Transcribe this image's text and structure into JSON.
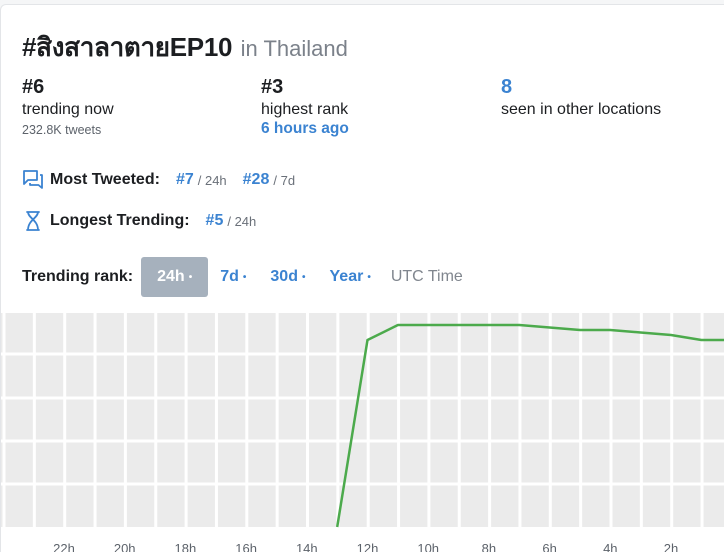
{
  "header": {
    "hashtag": "#สิงสาลาตายEP10",
    "location": "in Thailand"
  },
  "stats": [
    {
      "value": "#6",
      "label": "trending now",
      "sub": "232.8K tweets"
    },
    {
      "value": "#3",
      "label": "highest rank",
      "sub": "6 hours ago"
    },
    {
      "value": "8",
      "label": "seen in other locations"
    }
  ],
  "most_tweeted": {
    "label": "Most Tweeted:",
    "ranks": [
      {
        "rank": "#7",
        "period": "/ 24h"
      },
      {
        "rank": "#28",
        "period": "/ 7d"
      }
    ]
  },
  "longest_trending": {
    "label": "Longest Trending:",
    "ranks": [
      {
        "rank": "#5",
        "period": "/ 24h"
      }
    ]
  },
  "trending_rank": {
    "label": "Trending rank:",
    "options": [
      "24h",
      "7d",
      "30d",
      "Year"
    ],
    "active": "24h",
    "dot": "•",
    "timezone": "UTC Time"
  },
  "chart_data": {
    "type": "line",
    "x_labels": [
      "22h",
      "20h",
      "18h",
      "16h",
      "14h",
      "12h",
      "10h",
      "8h",
      "6h",
      "4h",
      "2h"
    ],
    "points_hours_ago": [
      13,
      12,
      11,
      10,
      9,
      8,
      7,
      6,
      5,
      4,
      3,
      2,
      1,
      0
    ],
    "points_rank": [
      50,
      6,
      3,
      3,
      3,
      3,
      3,
      3.5,
      4,
      4,
      4.5,
      5,
      6,
      6
    ],
    "colors": {
      "line": "#4caa4c",
      "grid_bg": "#ebebeb",
      "grid_line": "#ffffff"
    }
  }
}
